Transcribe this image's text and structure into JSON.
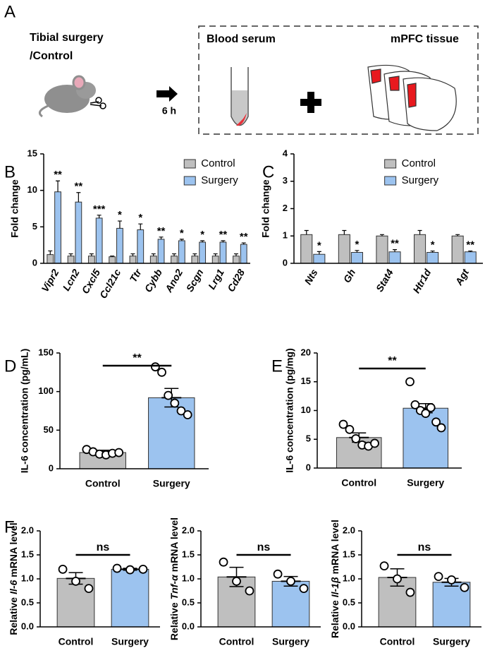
{
  "panel_a": {
    "label": "A",
    "left_text": [
      "Tibial surgery",
      "/Control"
    ],
    "arrow_label": "6 h",
    "box_titles": [
      "Blood serum",
      "mPFC tissue"
    ]
  },
  "chart_data": [
    {
      "type": "bar",
      "label": "B",
      "y_label": "Fold change",
      "categories": [
        "Vipr2",
        "Lcn2",
        "Cxcl5",
        "Ccl21c",
        "Ttr",
        "Cybb",
        "Ano2",
        "Scgn",
        "Lrg1",
        "Cd28"
      ],
      "series": [
        {
          "name": "Control",
          "color": "#bfbfbf",
          "values": [
            1.2,
            1.0,
            1.0,
            0.9,
            1.0,
            1.0,
            1.0,
            1.0,
            1.0,
            1.0
          ],
          "errors": [
            0.5,
            0.3,
            0.3,
            0.1,
            0.3,
            0.3,
            0.3,
            0.3,
            0.3,
            0.3
          ]
        },
        {
          "name": "Surgery",
          "color": "#9cc3ef",
          "values": [
            9.8,
            8.4,
            6.2,
            4.8,
            4.6,
            3.3,
            3.1,
            2.9,
            2.9,
            2.6
          ],
          "errors": [
            1.5,
            1.3,
            0.4,
            1.0,
            0.8,
            0.3,
            0.2,
            0.2,
            0.2,
            0.2
          ]
        }
      ],
      "annotations": [
        "**",
        "**",
        "***",
        "*",
        "*",
        "**",
        "*",
        "*",
        "**",
        "**"
      ],
      "ylim": [
        0,
        15
      ],
      "yticks": [
        0,
        5,
        10,
        15
      ],
      "legend": "upper right"
    },
    {
      "type": "bar",
      "label": "C",
      "y_label": "Fold change",
      "categories": [
        "Nts",
        "Gh",
        "Stat4",
        "Htr1d",
        "Agt"
      ],
      "series": [
        {
          "name": "Control",
          "color": "#bfbfbf",
          "values": [
            1.05,
            1.05,
            1.0,
            1.05,
            1.0
          ],
          "errors": [
            0.15,
            0.15,
            0.05,
            0.15,
            0.05
          ]
        },
        {
          "name": "Surgery",
          "color": "#9cc3ef",
          "values": [
            0.33,
            0.4,
            0.42,
            0.4,
            0.42
          ],
          "errors": [
            0.1,
            0.07,
            0.08,
            0.05,
            0.03
          ]
        }
      ],
      "annotations": [
        "*",
        "*",
        "**",
        "*",
        "**"
      ],
      "ylim": [
        0,
        4
      ],
      "yticks": [
        0,
        1,
        2,
        3,
        4
      ],
      "legend": "upper right"
    },
    {
      "type": "dotbar",
      "label": "D",
      "y_label": "IL-6 concentration (pg/mL)",
      "categories": [
        "Control",
        "Surgery"
      ],
      "values": [
        21,
        92
      ],
      "errors": [
        3,
        12
      ],
      "colors": [
        "#bfbfbf",
        "#9cc3ef"
      ],
      "points": [
        [
          25,
          22,
          19,
          18,
          20,
          21
        ],
        [
          132,
          125,
          95,
          85,
          75,
          70
        ]
      ],
      "annotation": "**",
      "ylim": [
        0,
        150
      ],
      "yticks": [
        0,
        50,
        100,
        150
      ]
    },
    {
      "type": "dotbar",
      "label": "E",
      "y_label": "IL-6 concentration (pg/mg)",
      "categories": [
        "Control",
        "Surgery"
      ],
      "values": [
        5.3,
        10.4
      ],
      "errors": [
        0.8,
        0.8
      ],
      "colors": [
        "#bfbfbf",
        "#9cc3ef"
      ],
      "points": [
        [
          7.6,
          6.7,
          5.1,
          4.0,
          3.8,
          4.3
        ],
        [
          15,
          11,
          10,
          9.5,
          10.5,
          8,
          7
        ]
      ],
      "annotation": "**",
      "ylim": [
        0,
        20
      ],
      "yticks": [
        0,
        5,
        10,
        15,
        20
      ]
    },
    {
      "type": "dotbar",
      "label": "F",
      "y_label": [
        "Relative",
        "Il-6",
        "mRNA level"
      ],
      "categories": [
        "Control",
        "Surgery"
      ],
      "values": [
        1.01,
        1.2
      ],
      "errors": [
        0.12,
        0.02
      ],
      "colors": [
        "#bfbfbf",
        "#9cc3ef"
      ],
      "points": [
        [
          1.2,
          0.95,
          0.8
        ],
        [
          1.22,
          1.19,
          1.2
        ]
      ],
      "annotation": "ns",
      "ylim": [
        0,
        2
      ],
      "yticks": [
        {
          "value": 0,
          "label": "0.0"
        },
        {
          "value": 0.5,
          "label": "0.5"
        },
        {
          "value": 1,
          "label": "1.0"
        },
        {
          "value": 1.5,
          "label": "1.5"
        },
        {
          "value": 2,
          "label": "2.0"
        }
      ]
    },
    {
      "type": "dotbar",
      "y_label": [
        "Relative",
        "Tnf-α",
        "mRNA level"
      ],
      "categories": [
        "Control",
        "Surgery"
      ],
      "values": [
        1.04,
        0.95
      ],
      "errors": [
        0.2,
        0.1
      ],
      "colors": [
        "#bfbfbf",
        "#9cc3ef"
      ],
      "points": [
        [
          1.35,
          0.95,
          0.75
        ],
        [
          1.1,
          0.95,
          0.8
        ]
      ],
      "annotation": "ns",
      "ylim": [
        0,
        2
      ],
      "yticks": [
        {
          "value": 0,
          "label": "0.0"
        },
        {
          "value": 0.5,
          "label": "0.5"
        },
        {
          "value": 1,
          "label": "1.0"
        },
        {
          "value": 1.5,
          "label": "1.5"
        },
        {
          "value": 2,
          "label": "2.0"
        }
      ]
    },
    {
      "type": "dotbar",
      "y_label": [
        "Relative",
        "Il-1β",
        "mRNA level"
      ],
      "categories": [
        "Control",
        "Surgery"
      ],
      "values": [
        1.03,
        0.93
      ],
      "errors": [
        0.18,
        0.08
      ],
      "colors": [
        "#bfbfbf",
        "#9cc3ef"
      ],
      "points": [
        [
          1.27,
          1.0,
          0.72
        ],
        [
          1.05,
          0.98,
          0.82
        ]
      ],
      "annotation": "ns",
      "ylim": [
        0,
        2
      ],
      "yticks": [
        {
          "value": 0,
          "label": "0.0"
        },
        {
          "value": 0.5,
          "label": "0.5"
        },
        {
          "value": 1,
          "label": "1.0"
        },
        {
          "value": 1.5,
          "label": "1.5"
        },
        {
          "value": 2,
          "label": "2.0"
        }
      ]
    }
  ]
}
